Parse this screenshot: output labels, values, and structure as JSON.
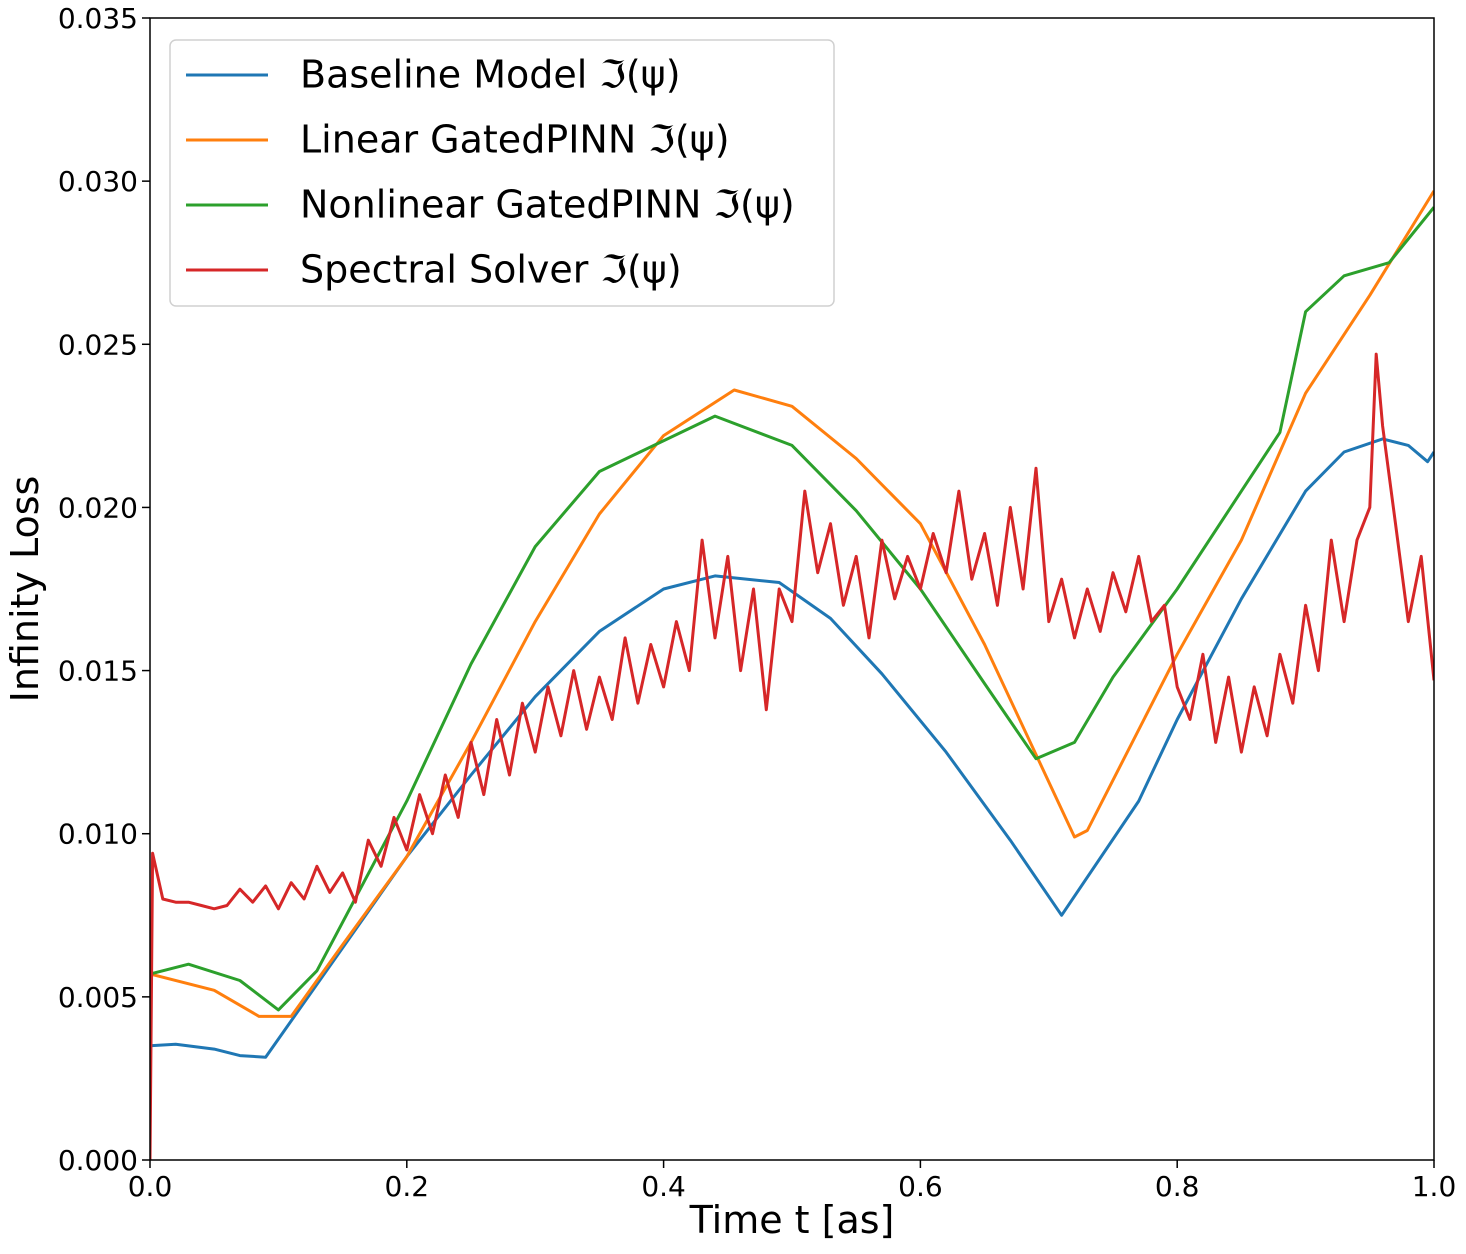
{
  "chart_data": {
    "type": "line",
    "xlabel": "Time t [as]",
    "ylabel": "Infinity Loss",
    "xlim": [
      0,
      1
    ],
    "ylim": [
      0,
      0.035
    ],
    "xticks": [
      {
        "value": 0,
        "label": "0.0"
      },
      0.2,
      0.4,
      0.6,
      0.8,
      {
        "value": 1,
        "label": "1.0"
      }
    ],
    "yticks": [
      {
        "value": 0,
        "label": "0.000"
      },
      0.005,
      {
        "value": 0.01,
        "label": "0.010"
      },
      0.015,
      {
        "value": 0.02,
        "label": "0.020"
      },
      0.025,
      {
        "value": 0.03,
        "label": "0.030"
      },
      0.035
    ],
    "legend": "upper left",
    "series": [
      {
        "name": "Baseline Model ℑ(ψ)",
        "color": "#1f77b4",
        "x": [
          0,
          0.02,
          0.05,
          0.07,
          0.09,
          0.15,
          0.2,
          0.25,
          0.3,
          0.35,
          0.4,
          0.44,
          0.49,
          0.53,
          0.57,
          0.62,
          0.67,
          0.71,
          0.77,
          0.8,
          0.85,
          0.9,
          0.93,
          0.96,
          0.98,
          0.995,
          1.0
        ],
        "values": [
          0.0035,
          0.00355,
          0.0034,
          0.0032,
          0.00315,
          0.0065,
          0.0093,
          0.0118,
          0.0142,
          0.0162,
          0.0175,
          0.0179,
          0.0177,
          0.0166,
          0.0149,
          0.0125,
          0.0098,
          0.0075,
          0.011,
          0.0135,
          0.0172,
          0.0205,
          0.0217,
          0.0221,
          0.0219,
          0.0214,
          0.0217
        ]
      },
      {
        "name": "Linear GatedPINN ℑ(ψ)",
        "color": "#ff7f0e",
        "x": [
          0,
          0.05,
          0.085,
          0.11,
          0.15,
          0.2,
          0.25,
          0.3,
          0.35,
          0.4,
          0.455,
          0.5,
          0.55,
          0.6,
          0.65,
          0.72,
          0.73,
          0.8,
          0.85,
          0.9,
          0.95,
          1.0
        ],
        "values": [
          0.0057,
          0.0052,
          0.0044,
          0.0044,
          0.0066,
          0.0093,
          0.0128,
          0.0165,
          0.0198,
          0.0222,
          0.0236,
          0.0231,
          0.0215,
          0.0195,
          0.0158,
          0.0099,
          0.0101,
          0.0155,
          0.019,
          0.0235,
          0.0265,
          0.0297
        ]
      },
      {
        "name": "Nonlinear GatedPINN ℑ(ψ)",
        "color": "#2ca02c",
        "x": [
          0,
          0.03,
          0.07,
          0.1,
          0.13,
          0.2,
          0.25,
          0.3,
          0.35,
          0.44,
          0.5,
          0.55,
          0.6,
          0.65,
          0.69,
          0.72,
          0.75,
          0.8,
          0.85,
          0.88,
          0.9,
          0.93,
          0.965,
          1.0
        ],
        "values": [
          0.0057,
          0.006,
          0.0055,
          0.0046,
          0.0058,
          0.011,
          0.0152,
          0.0188,
          0.0211,
          0.0228,
          0.0219,
          0.0199,
          0.0175,
          0.0146,
          0.0123,
          0.0128,
          0.0148,
          0.0175,
          0.0205,
          0.0223,
          0.026,
          0.0271,
          0.0275,
          0.0292
        ]
      },
      {
        "name": "Spectral Solver ℑ(ψ)",
        "color": "#d62728",
        "x": [
          0,
          0.002,
          0.01,
          0.02,
          0.03,
          0.04,
          0.05,
          0.06,
          0.07,
          0.08,
          0.09,
          0.1,
          0.11,
          0.12,
          0.13,
          0.14,
          0.15,
          0.16,
          0.17,
          0.18,
          0.19,
          0.2,
          0.21,
          0.22,
          0.23,
          0.24,
          0.25,
          0.26,
          0.27,
          0.28,
          0.29,
          0.3,
          0.31,
          0.32,
          0.33,
          0.34,
          0.35,
          0.36,
          0.37,
          0.38,
          0.39,
          0.4,
          0.41,
          0.42,
          0.43,
          0.44,
          0.45,
          0.46,
          0.47,
          0.48,
          0.49,
          0.5,
          0.51,
          0.52,
          0.53,
          0.54,
          0.55,
          0.56,
          0.57,
          0.58,
          0.59,
          0.6,
          0.61,
          0.62,
          0.63,
          0.64,
          0.65,
          0.66,
          0.67,
          0.68,
          0.69,
          0.7,
          0.71,
          0.72,
          0.73,
          0.74,
          0.75,
          0.76,
          0.77,
          0.78,
          0.79,
          0.8,
          0.81,
          0.82,
          0.83,
          0.84,
          0.85,
          0.86,
          0.87,
          0.88,
          0.89,
          0.9,
          0.91,
          0.92,
          0.93,
          0.94,
          0.95,
          0.955,
          0.96,
          0.97,
          0.98,
          0.99,
          1.0
        ],
        "values": [
          0.0,
          0.0094,
          0.008,
          0.0079,
          0.0079,
          0.0078,
          0.0077,
          0.0078,
          0.0083,
          0.0079,
          0.0084,
          0.0077,
          0.0085,
          0.008,
          0.009,
          0.0082,
          0.0088,
          0.0079,
          0.0098,
          0.009,
          0.0105,
          0.0095,
          0.0112,
          0.01,
          0.0118,
          0.0105,
          0.0128,
          0.0112,
          0.0135,
          0.0118,
          0.014,
          0.0125,
          0.0145,
          0.013,
          0.015,
          0.0132,
          0.0148,
          0.0135,
          0.016,
          0.014,
          0.0158,
          0.0145,
          0.0165,
          0.015,
          0.019,
          0.016,
          0.0185,
          0.015,
          0.0175,
          0.0138,
          0.0175,
          0.0165,
          0.0205,
          0.018,
          0.0195,
          0.017,
          0.0185,
          0.016,
          0.019,
          0.0172,
          0.0185,
          0.0175,
          0.0192,
          0.018,
          0.0205,
          0.0178,
          0.0192,
          0.017,
          0.02,
          0.0175,
          0.0212,
          0.0165,
          0.0178,
          0.016,
          0.0175,
          0.0162,
          0.018,
          0.0168,
          0.0185,
          0.0165,
          0.017,
          0.0145,
          0.0135,
          0.0155,
          0.0128,
          0.0148,
          0.0125,
          0.0145,
          0.013,
          0.0155,
          0.014,
          0.017,
          0.015,
          0.019,
          0.0165,
          0.019,
          0.02,
          0.0247,
          0.0225,
          0.0195,
          0.0165,
          0.0185,
          0.0147
        ]
      }
    ]
  }
}
